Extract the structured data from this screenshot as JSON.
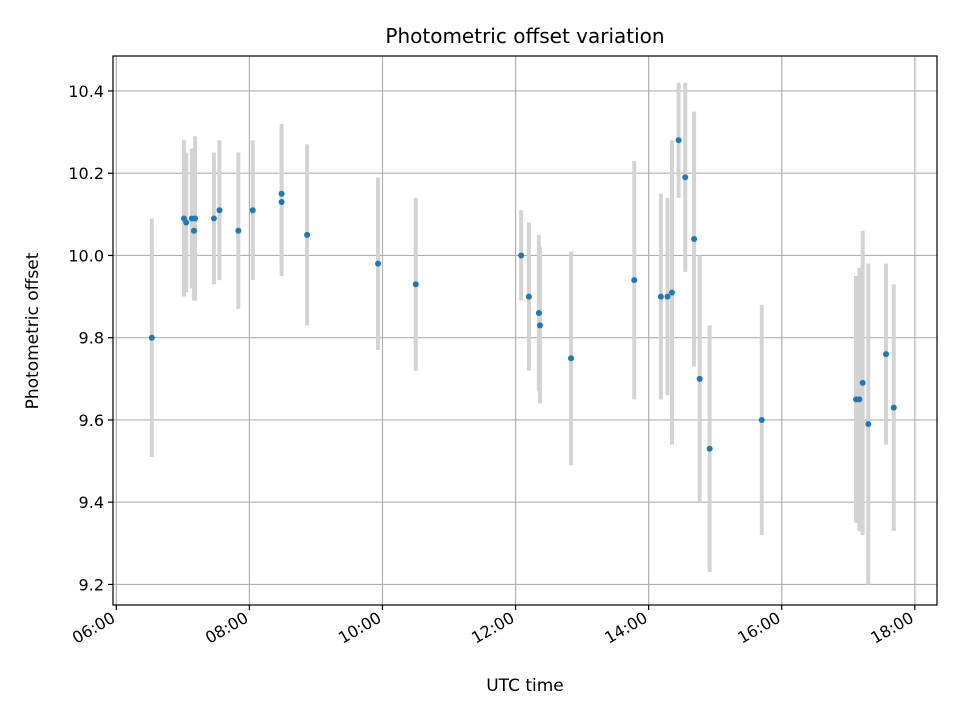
{
  "chart_data": {
    "type": "scatter",
    "title": "Photometric offset variation",
    "xlabel": "UTC time",
    "ylabel": "Photometric offset",
    "xlim": [
      "05:57",
      "18:20"
    ],
    "ylim": [
      9.15,
      10.485
    ],
    "grid": true,
    "x_ticks": [
      "06:00",
      "08:00",
      "10:00",
      "12:00",
      "14:00",
      "16:00",
      "18:00"
    ],
    "y_ticks": [
      9.2,
      9.4,
      9.6,
      9.8,
      10.0,
      10.2,
      10.4
    ],
    "colors": {
      "marker": "#1f77b4",
      "errorbar": "#d3d3d3",
      "grid": "#b0b0b0"
    },
    "series": [
      {
        "points": [
          {
            "x": "06:32",
            "y": 9.8,
            "err": 0.29
          },
          {
            "x": "07:01",
            "y": 10.09,
            "err": 0.19
          },
          {
            "x": "07:03",
            "y": 10.08,
            "err": 0.17
          },
          {
            "x": "07:08",
            "y": 10.09,
            "err": 0.17
          },
          {
            "x": "07:10",
            "y": 10.06,
            "err": 0.17
          },
          {
            "x": "07:11",
            "y": 10.09,
            "err": 0.2
          },
          {
            "x": "07:28",
            "y": 10.09,
            "err": 0.16
          },
          {
            "x": "07:33",
            "y": 10.11,
            "err": 0.17
          },
          {
            "x": "07:50",
            "y": 10.06,
            "err": 0.19
          },
          {
            "x": "08:03",
            "y": 10.11,
            "err": 0.17
          },
          {
            "x": "08:29",
            "y": 10.15,
            "err": 0.17
          },
          {
            "x": "08:29",
            "y": 10.13,
            "err": 0.18
          },
          {
            "x": "08:52",
            "y": 10.05,
            "err": 0.22
          },
          {
            "x": "09:56",
            "y": 9.98,
            "err": 0.21
          },
          {
            "x": "10:30",
            "y": 9.93,
            "err": 0.21
          },
          {
            "x": "12:05",
            "y": 10.0,
            "err": 0.11
          },
          {
            "x": "12:12",
            "y": 9.9,
            "err": 0.18
          },
          {
            "x": "12:21",
            "y": 9.86,
            "err": 0.19
          },
          {
            "x": "12:22",
            "y": 9.83,
            "err": 0.19
          },
          {
            "x": "12:50",
            "y": 9.75,
            "err": 0.26
          },
          {
            "x": "13:47",
            "y": 9.94,
            "err": 0.29
          },
          {
            "x": "14:11",
            "y": 9.9,
            "err": 0.25
          },
          {
            "x": "14:17",
            "y": 9.9,
            "err": 0.24
          },
          {
            "x": "14:21",
            "y": 9.91,
            "err": 0.37
          },
          {
            "x": "14:27",
            "y": 10.28,
            "err": 0.14
          },
          {
            "x": "14:33",
            "y": 10.19,
            "err": 0.23
          },
          {
            "x": "14:41",
            "y": 10.04,
            "err": 0.31
          },
          {
            "x": "14:46",
            "y": 9.7,
            "err": 0.3
          },
          {
            "x": "14:55",
            "y": 9.53,
            "err": 0.3
          },
          {
            "x": "15:42",
            "y": 9.6,
            "err": 0.28
          },
          {
            "x": "17:07",
            "y": 9.65,
            "err": 0.3
          },
          {
            "x": "17:10",
            "y": 9.65,
            "err": 0.32
          },
          {
            "x": "17:13",
            "y": 9.69,
            "err": 0.37
          },
          {
            "x": "17:18",
            "y": 9.59,
            "err": 0.39
          },
          {
            "x": "17:34",
            "y": 9.76,
            "err": 0.22
          },
          {
            "x": "17:41",
            "y": 9.63,
            "err": 0.3
          }
        ]
      }
    ]
  }
}
